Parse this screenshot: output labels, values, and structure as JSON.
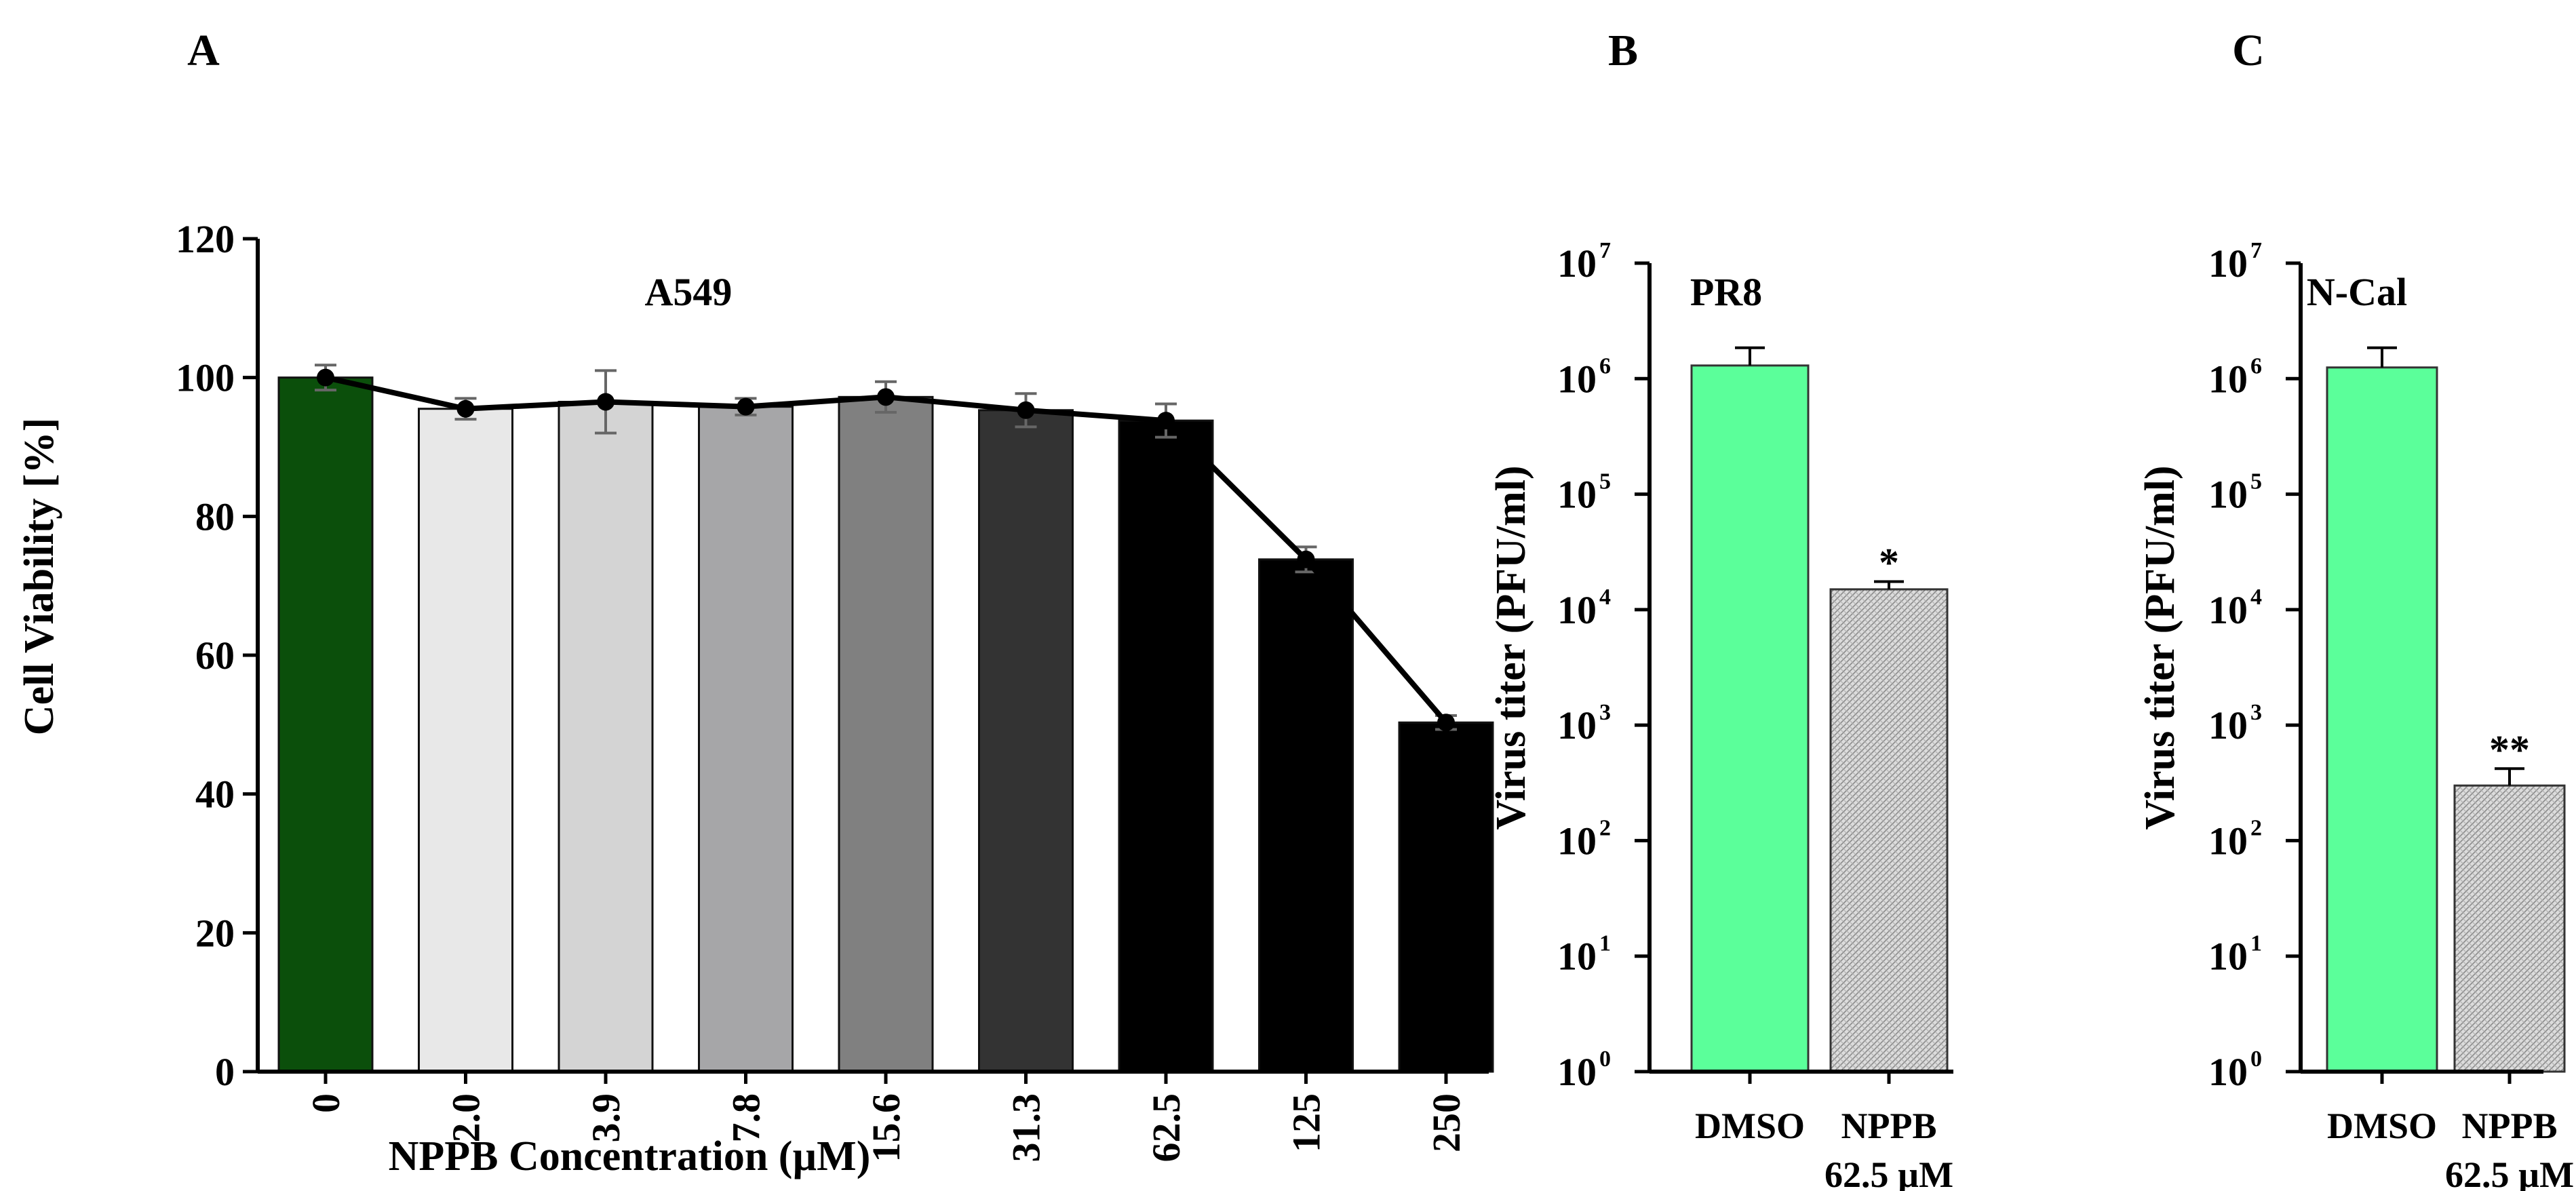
{
  "panel_labels": [
    "A",
    "B",
    "C"
  ],
  "chart_data": [
    {
      "panel": "A",
      "type": "bar",
      "title": "A549",
      "xlabel": "NPPB Concentration (µM)",
      "ylabel": "Cell Viability [%]",
      "ylim": [
        0,
        120
      ],
      "yticks": [
        "0",
        "20",
        "40",
        "60",
        "80",
        "100",
        "120"
      ],
      "categories": [
        "0",
        "2.0",
        "3.9",
        "7.8",
        "15.6",
        "31.3",
        "62.5",
        "125",
        "250"
      ],
      "values": [
        100,
        95.5,
        96.5,
        95.8,
        97.2,
        95.3,
        93.8,
        73.8,
        50.3
      ],
      "errors": [
        1.8,
        1.5,
        4.5,
        1.2,
        2.2,
        2.4,
        2.4,
        1.8,
        1.0
      ],
      "bar_colors": [
        "#0b4f0b",
        "#e8e8e8",
        "#d4d4d4",
        "#a6a6a8",
        "#808080",
        "#333333",
        "#000000",
        "#000000",
        "#000000"
      ],
      "line_overlay": true
    },
    {
      "panel": "B",
      "type": "bar",
      "title": "PR8",
      "ylabel": "Virus titer (PFU/ml)",
      "yscale": "log",
      "yticks_exp": [
        "0",
        "1",
        "2",
        "3",
        "4",
        "5",
        "6",
        "7"
      ],
      "categories": [
        "DMSO",
        "NPPB\n62.5 µM"
      ],
      "values": [
        1300000,
        15000
      ],
      "errors_upper": [
        1850000,
        17500
      ],
      "significance": [
        "",
        "*"
      ],
      "bar_colors": [
        "#5bff9a",
        "#d6d6d6"
      ]
    },
    {
      "panel": "C",
      "type": "bar",
      "title": "N-Cal",
      "ylabel": "Virus titer (PFU/ml)",
      "yscale": "log",
      "yticks_exp": [
        "0",
        "1",
        "2",
        "3",
        "4",
        "5",
        "6",
        "7"
      ],
      "categories": [
        "DMSO",
        "NPPB\n62.5 µM"
      ],
      "values": [
        1250000,
        300
      ],
      "errors_upper": [
        1850000,
        420
      ],
      "significance": [
        "",
        "**"
      ],
      "bar_colors": [
        "#5bff9a",
        "#d6d6d6"
      ]
    }
  ]
}
